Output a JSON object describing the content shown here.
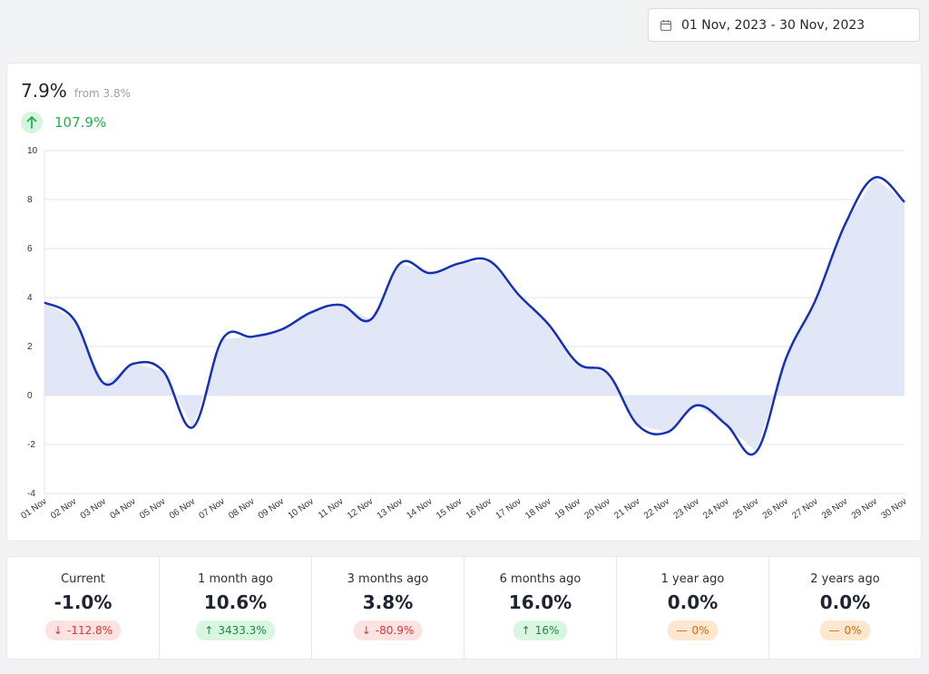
{
  "date_range": {
    "label": "01 Nov, 2023 - 30 Nov, 2023",
    "icon": "calendar-icon"
  },
  "summary": {
    "value": "7.9%",
    "from_label": "from 3.8%",
    "change": "107.9%",
    "change_icon": "arrow-up-icon",
    "change_color": "#1fb14e"
  },
  "chart_data": {
    "type": "area",
    "x": [
      "01 Nov",
      "02 Nov",
      "03 Nov",
      "04 Nov",
      "05 Nov",
      "06 Nov",
      "07 Nov",
      "08 Nov",
      "09 Nov",
      "10 Nov",
      "11 Nov",
      "12 Nov",
      "13 Nov",
      "14 Nov",
      "15 Nov",
      "16 Nov",
      "17 Nov",
      "18 Nov",
      "19 Nov",
      "20 Nov",
      "21 Nov",
      "22 Nov",
      "23 Nov",
      "24 Nov",
      "25 Nov",
      "26 Nov",
      "27 Nov",
      "28 Nov",
      "29 Nov",
      "30 Nov"
    ],
    "series": [
      {
        "values": [
          3.8,
          3.1,
          0.5,
          1.3,
          1.0,
          -1.3,
          2.3,
          2.4,
          2.7,
          3.4,
          3.7,
          3.1,
          5.4,
          5.0,
          5.4,
          5.5,
          4.1,
          2.9,
          1.3,
          0.9,
          -1.2,
          -1.5,
          -0.4,
          -1.2,
          -2.3,
          1.5,
          3.9,
          7.0,
          8.9,
          7.9
        ]
      }
    ],
    "ylim": [
      -4,
      10
    ],
    "yticks": [
      -4,
      -2,
      0,
      2,
      4,
      6,
      8,
      10
    ],
    "grid": true,
    "line_color": "#1631b4",
    "fill_color": "#e2e7f8"
  },
  "stats": [
    {
      "label": "Current",
      "value": "-1.0%",
      "badge": "-112.8%",
      "trend": "down"
    },
    {
      "label": "1 month ago",
      "value": "10.6%",
      "badge": "3433.3%",
      "trend": "up"
    },
    {
      "label": "3 months ago",
      "value": "3.8%",
      "badge": "-80.9%",
      "trend": "down"
    },
    {
      "label": "6 months ago",
      "value": "16.0%",
      "badge": "16%",
      "trend": "up"
    },
    {
      "label": "1 year ago",
      "value": "0.0%",
      "badge": "0%",
      "trend": "flat"
    },
    {
      "label": "2 years ago",
      "value": "0.0%",
      "badge": "0%",
      "trend": "flat"
    }
  ],
  "colors": {
    "up": "#1a8a40",
    "down": "#cf3a3a",
    "flat": "#d06b12"
  }
}
